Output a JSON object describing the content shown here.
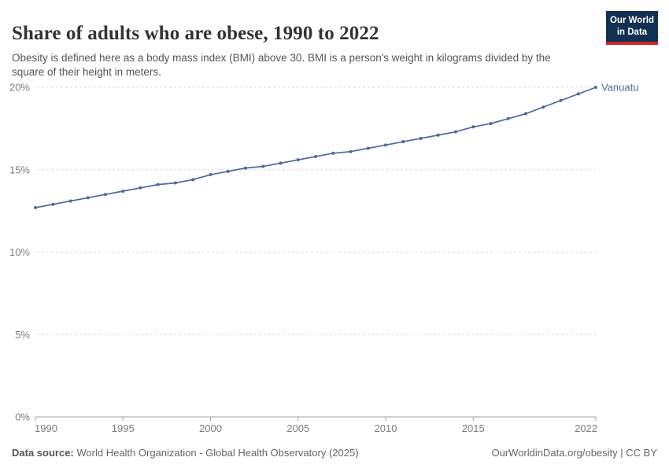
{
  "header": {
    "title": "Share of adults who are obese, 1990 to 2022",
    "subtitle": "Obesity is defined here as a body mass index (BMI) above 30. BMI is a person's weight in kilograms divided by the square of their height in meters.",
    "logo": {
      "line1": "Our World",
      "line2": "in Data"
    }
  },
  "chart_data": {
    "type": "line",
    "title": "Share of adults who are obese, 1990 to 2022",
    "xlabel": "",
    "ylabel": "",
    "x": [
      1990,
      1991,
      1992,
      1993,
      1994,
      1995,
      1996,
      1997,
      1998,
      1999,
      2000,
      2001,
      2002,
      2003,
      2004,
      2005,
      2006,
      2007,
      2008,
      2009,
      2010,
      2011,
      2012,
      2013,
      2014,
      2015,
      2016,
      2017,
      2018,
      2019,
      2020,
      2021,
      2022
    ],
    "series": [
      {
        "name": "Vanuatu",
        "color": "#4C6A9C",
        "values": [
          12.7,
          12.9,
          13.1,
          13.3,
          13.5,
          13.7,
          13.9,
          14.1,
          14.2,
          14.4,
          14.7,
          14.9,
          15.1,
          15.2,
          15.4,
          15.6,
          15.8,
          16.0,
          16.1,
          16.3,
          16.5,
          16.7,
          16.9,
          17.1,
          17.3,
          17.6,
          17.8,
          18.1,
          18.4,
          18.8,
          19.2,
          19.6,
          20.0
        ]
      }
    ],
    "xlim": [
      1990,
      2022
    ],
    "ylim": [
      0,
      20
    ],
    "x_ticks": [
      1990,
      1995,
      2000,
      2005,
      2010,
      2015,
      2022
    ],
    "y_ticks": [
      {
        "value": 0,
        "label": "0%"
      },
      {
        "value": 5,
        "label": "5%"
      },
      {
        "value": 10,
        "label": "10%"
      },
      {
        "value": 15,
        "label": "15%"
      },
      {
        "value": 20,
        "label": "20%"
      }
    ],
    "grid": "horizontal dashed",
    "legend_position": "end-of-line label"
  },
  "footer": {
    "source_label": "Data source:",
    "source_text": "World Health Organization - Global Health Observatory (2025)",
    "credit": "OurWorldinData.org/obesity | CC BY"
  },
  "colors": {
    "line": "#4C6A9C",
    "grid": "#DCDCDC",
    "axis": "#A1A1A1",
    "tick_label": "#7D7D7D",
    "title": "#333333",
    "subtitle": "#555555",
    "footer": "#666666",
    "logo_bg": "#123052",
    "logo_stripe": "#CD2328"
  }
}
